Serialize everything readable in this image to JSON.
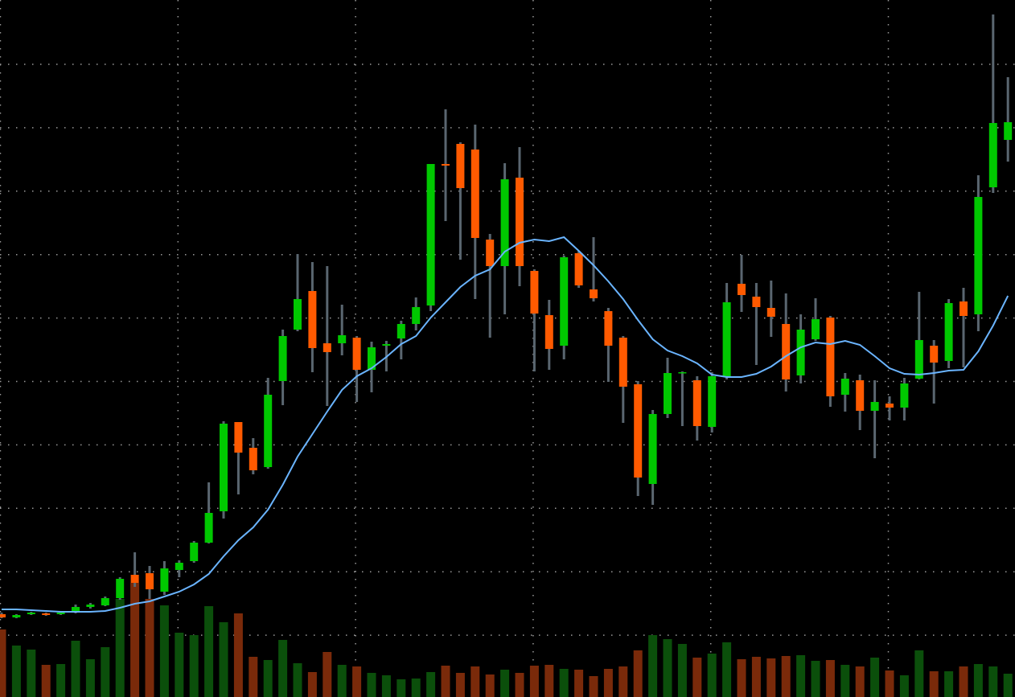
{
  "chart_data": {
    "type": "candlestick",
    "ylim": [
      0,
      867
    ],
    "grid": true,
    "up_color": "#00c800",
    "down_color": "#ff5a00",
    "wick_color": "#5a6670",
    "volume_up_color": "#0b4f0b",
    "volume_down_color": "#7a2a0a",
    "open": [
      103,
      99,
      103,
      104,
      103,
      105,
      112,
      114,
      123,
      152,
      154,
      131,
      158,
      169,
      192,
      231,
      342,
      310,
      286,
      393,
      457,
      505,
      440,
      440,
      447,
      407,
      437,
      446,
      464,
      487,
      663,
      688,
      681,
      569,
      536,
      646,
      530,
      475,
      437,
      552,
      507,
      480,
      447,
      389,
      265,
      352,
      403,
      394,
      336,
      398,
      514,
      498,
      484,
      464,
      400,
      445,
      472,
      376,
      394,
      356,
      365,
      360,
      396,
      437,
      418,
      492,
      476,
      634,
      693
    ],
    "high": [
      105,
      103,
      106,
      105,
      106,
      115,
      117,
      125,
      149,
      180,
      163,
      169,
      170,
      194,
      267,
      343,
      342,
      322,
      397,
      457,
      551,
      541,
      536,
      488,
      449,
      442,
      443,
      468,
      497,
      663,
      731,
      690,
      712,
      576,
      664,
      684,
      532,
      494,
      549,
      555,
      572,
      484,
      449,
      393,
      357,
      422,
      405,
      399,
      404,
      515,
      550,
      515,
      518,
      502,
      476,
      496,
      474,
      403,
      401,
      394,
      374,
      397,
      504,
      444,
      495,
      509,
      649,
      849,
      771
    ],
    "low": [
      98,
      98,
      102,
      101,
      102,
      104,
      110,
      113,
      121,
      137,
      122,
      127,
      149,
      167,
      191,
      222,
      252,
      277,
      284,
      363,
      455,
      404,
      362,
      425,
      367,
      379,
      405,
      420,
      456,
      480,
      592,
      544,
      495,
      447,
      476,
      511,
      405,
      407,
      420,
      509,
      492,
      392,
      341,
      250,
      239,
      347,
      337,
      319,
      329,
      395,
      479,
      413,
      448,
      380,
      390,
      443,
      361,
      355,
      332,
      297,
      344,
      344,
      395,
      365,
      409,
      410,
      455,
      627,
      666
    ],
    "close": [
      99,
      102,
      105,
      102,
      105,
      112,
      115,
      123,
      147,
      142,
      134,
      160,
      167,
      192,
      229,
      340,
      304,
      282,
      376,
      449,
      495,
      434,
      429,
      450,
      407,
      435,
      439,
      464,
      485,
      663,
      661,
      633,
      571,
      536,
      644,
      536,
      477,
      433,
      547,
      512,
      496,
      437,
      386,
      273,
      352,
      403,
      404,
      337,
      399,
      491,
      500,
      485,
      473,
      395,
      457,
      470,
      374,
      396,
      356,
      367,
      360,
      390,
      444,
      416,
      490,
      474,
      622,
      714,
      715
    ],
    "volume": [
      84,
      64,
      59,
      40,
      41,
      70,
      47,
      62,
      122,
      142,
      122,
      114,
      80,
      77,
      113,
      93,
      104,
      50,
      46,
      71,
      42,
      31,
      56,
      40,
      38,
      30,
      27,
      22,
      23,
      31,
      39,
      30,
      38,
      28,
      34,
      30,
      39,
      40,
      35,
      34,
      26,
      35,
      38,
      58,
      77,
      72,
      66,
      49,
      54,
      68,
      47,
      50,
      48,
      51,
      52,
      45,
      46,
      40,
      38,
      49,
      33,
      27,
      58,
      32,
      32,
      38,
      41,
      38,
      29
    ],
    "series": [
      {
        "color": "#6ab4ff",
        "values": [
          109,
          109,
          108,
          107,
          106,
          106,
          106,
          107,
          111,
          116,
          119,
          125,
          131,
          140,
          153,
          175,
          195,
          211,
          233,
          264,
          299,
          327,
          355,
          382,
          399,
          409,
          423,
          439,
          449,
          472,
          491,
          510,
          524,
          532,
          554,
          565,
          569,
          567,
          572,
          555,
          537,
          517,
          495,
          469,
          445,
          431,
          424,
          415,
          401,
          398,
          398,
          402,
          411,
          424,
          435,
          441,
          439,
          443,
          438,
          424,
          409,
          402,
          401,
          403,
          406,
          407,
          430,
          462,
          499
        ]
      }
    ]
  }
}
